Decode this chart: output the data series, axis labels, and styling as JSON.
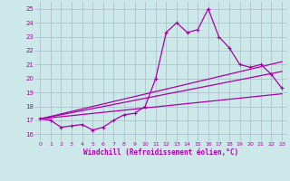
{
  "xlabel": "Windchill (Refroidissement éolien,°C)",
  "bg_color": "#cce8e8",
  "grid_color": "#aabbcc",
  "line_color": "#aa00aa",
  "xlim": [
    -0.5,
    23.5
  ],
  "ylim": [
    15.5,
    25.5
  ],
  "yticks": [
    16,
    17,
    18,
    19,
    20,
    21,
    22,
    23,
    24,
    25
  ],
  "xticks": [
    0,
    1,
    2,
    3,
    4,
    5,
    6,
    7,
    8,
    9,
    10,
    11,
    12,
    13,
    14,
    15,
    16,
    17,
    18,
    19,
    20,
    21,
    22,
    23
  ],
  "main_x": [
    0,
    1,
    2,
    3,
    4,
    5,
    6,
    7,
    8,
    9,
    10,
    11,
    12,
    13,
    14,
    15,
    16,
    17,
    18,
    19,
    20,
    21,
    22,
    23
  ],
  "main_y": [
    17.1,
    17.0,
    16.5,
    16.6,
    16.7,
    16.3,
    16.5,
    17.0,
    17.4,
    17.5,
    18.0,
    20.0,
    23.3,
    24.0,
    23.3,
    23.5,
    25.0,
    23.0,
    22.2,
    21.0,
    20.8,
    21.0,
    20.3,
    19.3
  ],
  "trend1_x": [
    0,
    23
  ],
  "trend1_y": [
    17.1,
    18.9
  ],
  "trend2_x": [
    0,
    23
  ],
  "trend2_y": [
    17.1,
    20.5
  ],
  "trend3_x": [
    0,
    23
  ],
  "trend3_y": [
    17.1,
    21.2
  ]
}
